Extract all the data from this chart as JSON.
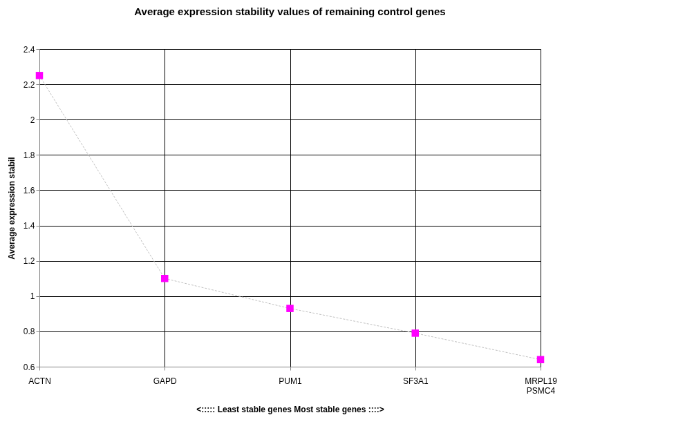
{
  "chart_data": {
    "type": "line",
    "title": "Average expression stability values of remaining control genes",
    "xlabel": "<:::::  Least stable genes          Most stable genes ::::>",
    "ylabel": "Average expression stabil",
    "categories": [
      "ACTN",
      "GAPD",
      "PUM1",
      "SF3A1",
      "MRPL19\nPSMC4"
    ],
    "series": [
      {
        "color": "#ff00ff",
        "values": [
          2.25,
          1.1,
          0.93,
          0.79,
          0.64
        ]
      }
    ],
    "ylim": [
      0.6,
      2.4
    ],
    "yticks": [
      0.6,
      0.8,
      1,
      1.2,
      1.4,
      1.6,
      1.8,
      2,
      2.2,
      2.4
    ],
    "grid": true,
    "marker": "square",
    "line_style": "dashed"
  }
}
